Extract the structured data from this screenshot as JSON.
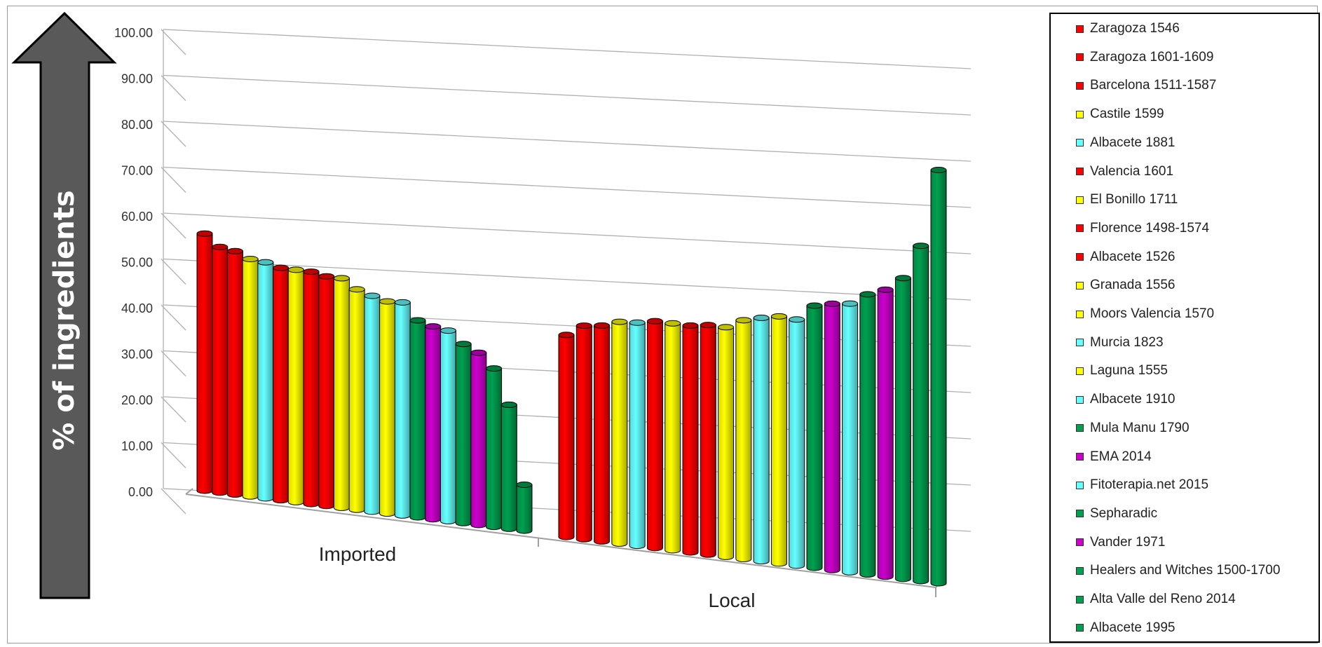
{
  "chart_data": {
    "type": "bar",
    "title": "",
    "ylabel": "% of ingredients",
    "xlabel": "",
    "ylim": [
      0,
      100
    ],
    "yticks": [
      "0.00",
      "10.00",
      "20.00",
      "30.00",
      "40.00",
      "50.00",
      "60.00",
      "70.00",
      "80.00",
      "90.00",
      "100.00"
    ],
    "categories": [
      "Imported",
      "Local"
    ],
    "grid": true,
    "legend_position": "right",
    "series": [
      {
        "name": "Zaragoza 1546",
        "color": "#ff0000",
        "values": [
          56.0,
          44.0
        ]
      },
      {
        "name": "Zaragoza 1601-1609",
        "color": "#ff0000",
        "values": [
          53.5,
          46.5
        ]
      },
      {
        "name": "Barcelona 1511-1587",
        "color": "#ff0000",
        "values": [
          53.0,
          47.0
        ]
      },
      {
        "name": "Castile 1599",
        "color": "#ffff00",
        "values": [
          51.7,
          48.3
        ]
      },
      {
        "name": "Albacete 1881",
        "color": "#66ffff",
        "values": [
          51.4,
          48.6
        ]
      },
      {
        "name": "Valencia 1601",
        "color": "#ff0000",
        "values": [
          50.6,
          49.4
        ]
      },
      {
        "name": "El Bonillo 1711",
        "color": "#ffff00",
        "values": [
          50.6,
          49.4
        ]
      },
      {
        "name": "Florence 1498-1574",
        "color": "#ff0000",
        "values": [
          50.6,
          49.4
        ]
      },
      {
        "name": "Albacete 1526",
        "color": "#ff0000",
        "values": [
          50.0,
          50.0
        ]
      },
      {
        "name": "Granada 1556",
        "color": "#ffff00",
        "values": [
          50.0,
          50.0
        ]
      },
      {
        "name": "Moors Valencia 1570",
        "color": "#ffff00",
        "values": [
          48.0,
          52.0
        ]
      },
      {
        "name": "Murcia 1823",
        "color": "#66ffff",
        "values": [
          47.0,
          53.0
        ]
      },
      {
        "name": "Laguna 1555",
        "color": "#ffff00",
        "values": [
          46.2,
          53.8
        ]
      },
      {
        "name": "Albacete 1910",
        "color": "#66ffff",
        "values": [
          46.4,
          53.6
        ]
      },
      {
        "name": "Mula Manu 1790",
        "color": "#00a050",
        "values": [
          42.9,
          57.1
        ]
      },
      {
        "name": "EMA 2014",
        "color": "#cc00cc",
        "values": [
          42.0,
          58.0
        ]
      },
      {
        "name": "Fitoterapia.net 2015",
        "color": "#66ffff",
        "values": [
          41.5,
          58.5
        ]
      },
      {
        "name": "Sepharadic",
        "color": "#00a050",
        "values": [
          39.0,
          61.0
        ]
      },
      {
        "name": "Vander 1971",
        "color": "#cc00cc",
        "values": [
          37.5,
          62.5
        ]
      },
      {
        "name": "Healers and Witches 1500-1700",
        "color": "#00a050",
        "values": [
          34.5,
          65.5
        ]
      },
      {
        "name": "Alta Valle del Reno 2014",
        "color": "#00a050",
        "values": [
          27.0,
          73.0
        ]
      },
      {
        "name": "Albacete 1995",
        "color": "#00a050",
        "values": [
          10.0,
          90.0
        ]
      }
    ]
  }
}
